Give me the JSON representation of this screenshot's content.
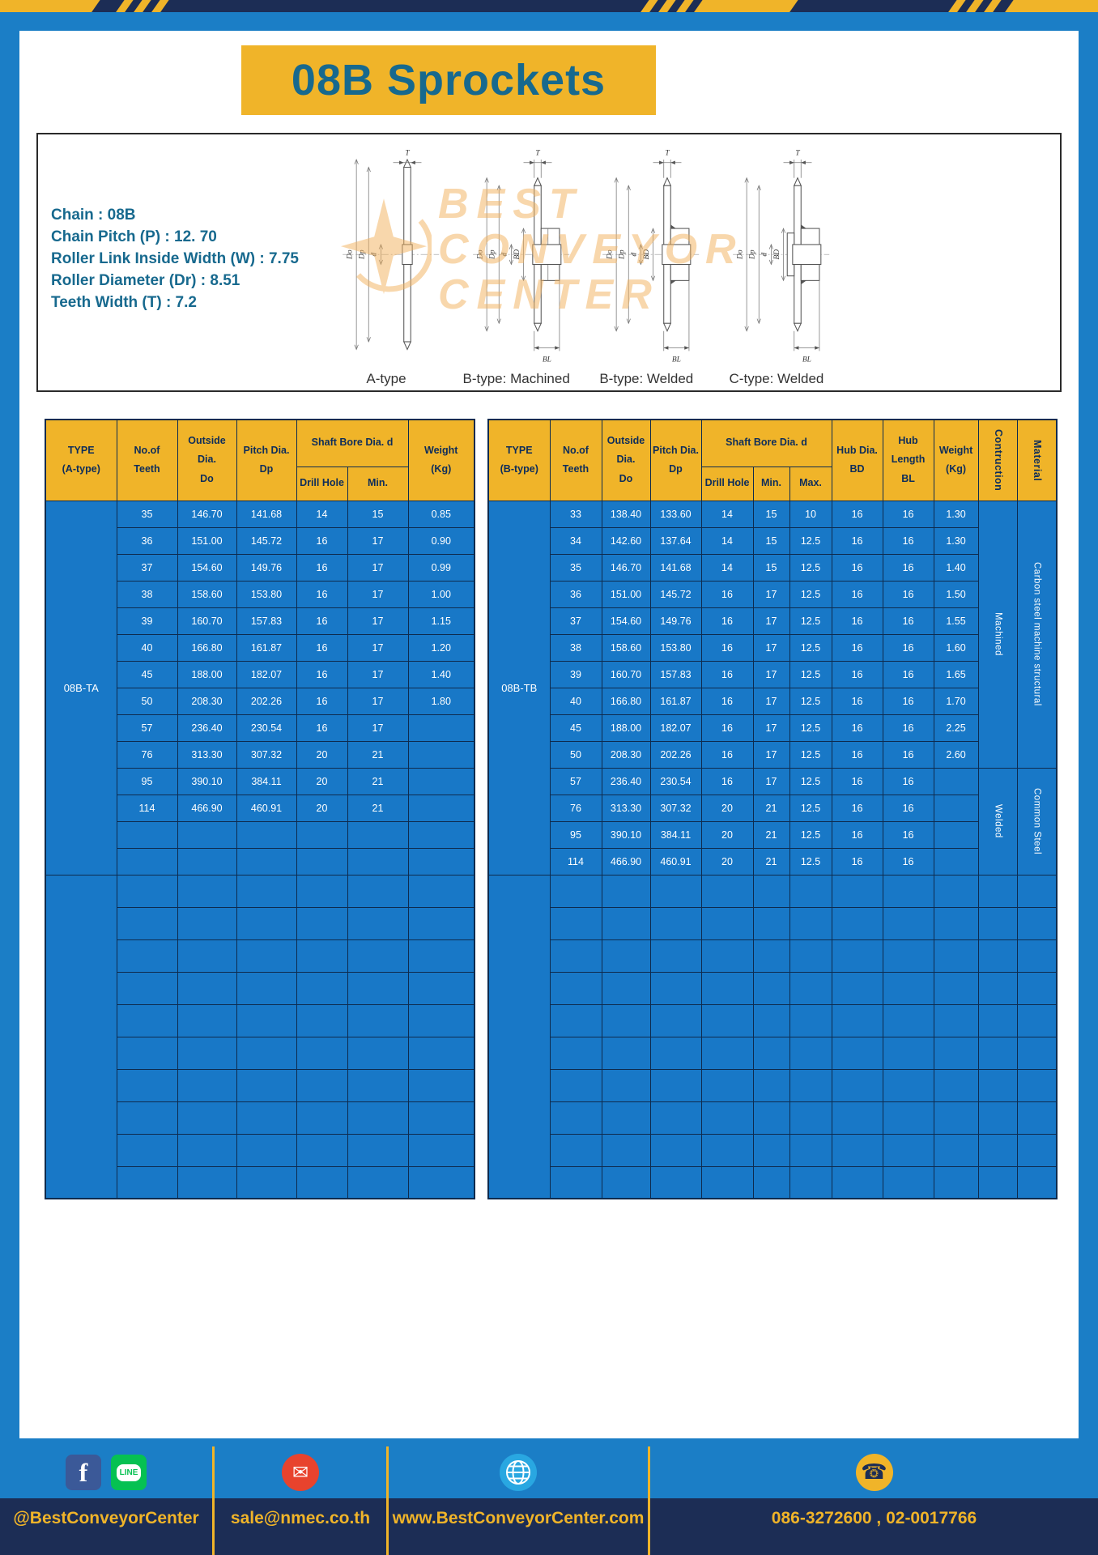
{
  "title": "08B Sprockets",
  "specs": [
    "Chain  : 08B",
    "Chain Pitch (P)  :  12. 70",
    "Roller Link Inside Width (W)  :  7.75",
    "Roller Diameter (Dr)  : 8.51",
    "Teeth Width (T)  :  7.2"
  ],
  "watermark": [
    "BEST",
    "CONVEYOR",
    "CENTER"
  ],
  "diagrams": [
    {
      "caption": "A-type",
      "style": "plain",
      "dims": [
        "T",
        "Do",
        "Dp",
        "d"
      ]
    },
    {
      "caption": "B-type: Machined",
      "style": "hub-machined",
      "dims": [
        "T",
        "Do",
        "Dp",
        "BD",
        "d",
        "BL"
      ]
    },
    {
      "caption": "B-type: Welded",
      "style": "hub-welded",
      "dims": [
        "T",
        "Do",
        "Dp",
        "BD",
        "d",
        "BL"
      ]
    },
    {
      "caption": "C-type: Welded",
      "style": "hub-double",
      "dims": [
        "T",
        "Do",
        "Dp",
        "BD",
        "d",
        "BL"
      ]
    }
  ],
  "table_a": {
    "headers": {
      "type": "TYPE\n(A-type)",
      "teeth": "No.of\nTeeth",
      "outside": "Outside\nDia.\nDo",
      "pitch": "Pitch Dia.\nDp",
      "shaft_bore": "Shaft Bore Dia. d",
      "drill": "Drill Hole",
      "min": "Min.",
      "weight": "Weight\n(Kg)"
    },
    "type_value": "08B-TA",
    "rows": [
      [
        "35",
        "146.70",
        "141.68",
        "14",
        "15",
        "0.85"
      ],
      [
        "36",
        "151.00",
        "145.72",
        "16",
        "17",
        "0.90"
      ],
      [
        "37",
        "154.60",
        "149.76",
        "16",
        "17",
        "0.99"
      ],
      [
        "38",
        "158.60",
        "153.80",
        "16",
        "17",
        "1.00"
      ],
      [
        "39",
        "160.70",
        "157.83",
        "16",
        "17",
        "1.15"
      ],
      [
        "40",
        "166.80",
        "161.87",
        "16",
        "17",
        "1.20"
      ],
      [
        "45",
        "188.00",
        "182.07",
        "16",
        "17",
        "1.40"
      ],
      [
        "50",
        "208.30",
        "202.26",
        "16",
        "17",
        "1.80"
      ],
      [
        "57",
        "236.40",
        "230.54",
        "16",
        "17",
        ""
      ],
      [
        "76",
        "313.30",
        "307.32",
        "20",
        "21",
        ""
      ],
      [
        "95",
        "390.10",
        "384.11",
        "20",
        "21",
        ""
      ],
      [
        "114",
        "466.90",
        "460.91",
        "20",
        "21",
        ""
      ]
    ],
    "blank_rows": 2,
    "empty_rows": 10
  },
  "table_b": {
    "headers": {
      "type": "TYPE\n(B-type)",
      "teeth": "No.of\nTeeth",
      "outside": "Outside\nDia.\nDo",
      "pitch": "Pitch Dia.\nDp",
      "shaft_bore": "Shaft Bore Dia. d",
      "drill": "Drill Hole",
      "min": "Min.",
      "max": "Max.",
      "hub_dia": "Hub Dia.\nBD",
      "hub_length": "Hub\nLength\nBL",
      "weight": "Weight\n(Kg)",
      "construction": "Contruction",
      "material": "Material"
    },
    "type_value": "08B-TB",
    "rows": [
      [
        "33",
        "138.40",
        "133.60",
        "14",
        "15",
        "10",
        "16",
        "16",
        "1.30"
      ],
      [
        "34",
        "142.60",
        "137.64",
        "14",
        "15",
        "12.5",
        "16",
        "16",
        "1.30"
      ],
      [
        "35",
        "146.70",
        "141.68",
        "14",
        "15",
        "12.5",
        "16",
        "16",
        "1.40"
      ],
      [
        "36",
        "151.00",
        "145.72",
        "16",
        "17",
        "12.5",
        "16",
        "16",
        "1.50"
      ],
      [
        "37",
        "154.60",
        "149.76",
        "16",
        "17",
        "12.5",
        "16",
        "16",
        "1.55"
      ],
      [
        "38",
        "158.60",
        "153.80",
        "16",
        "17",
        "12.5",
        "16",
        "16",
        "1.60"
      ],
      [
        "39",
        "160.70",
        "157.83",
        "16",
        "17",
        "12.5",
        "16",
        "16",
        "1.65"
      ],
      [
        "40",
        "166.80",
        "161.87",
        "16",
        "17",
        "12.5",
        "16",
        "16",
        "1.70"
      ],
      [
        "45",
        "188.00",
        "182.07",
        "16",
        "17",
        "12.5",
        "16",
        "16",
        "2.25"
      ],
      [
        "50",
        "208.30",
        "202.26",
        "16",
        "17",
        "12.5",
        "16",
        "16",
        "2.60"
      ],
      [
        "57",
        "236.40",
        "230.54",
        "16",
        "17",
        "12.5",
        "16",
        "16",
        ""
      ],
      [
        "76",
        "313.30",
        "307.32",
        "20",
        "21",
        "12.5",
        "16",
        "16",
        ""
      ],
      [
        "95",
        "390.10",
        "384.11",
        "20",
        "21",
        "12.5",
        "16",
        "16",
        ""
      ],
      [
        "114",
        "466.90",
        "460.91",
        "20",
        "21",
        "12.5",
        "16",
        "16",
        ""
      ]
    ],
    "construction_spans": [
      {
        "label": "Machined",
        "rows": 10
      },
      {
        "label": "Welded",
        "rows": 4
      }
    ],
    "material_spans": [
      {
        "label": "Carbon steel  machine structural",
        "rows": 10
      },
      {
        "label": "Common  Steel",
        "rows": 4
      }
    ],
    "blank_rows": 0,
    "empty_rows": 10
  },
  "footer": {
    "facebook_f": "f",
    "line_text": "LINE",
    "mail_glyph": "✉",
    "phone_glyph": "☎",
    "facebook_label": "@BestConveyorCenter",
    "email": "sale@nmec.co.th",
    "website": "www.BestConveyorCenter.com",
    "phone": "086-3272600 , 02-0017766"
  },
  "colors": {
    "page_blue": "#1b7ec6",
    "navy": "#1c2d55",
    "yellow": "#f0b429",
    "table_blue": "#1878c7",
    "title_teal": "#17698e"
  }
}
